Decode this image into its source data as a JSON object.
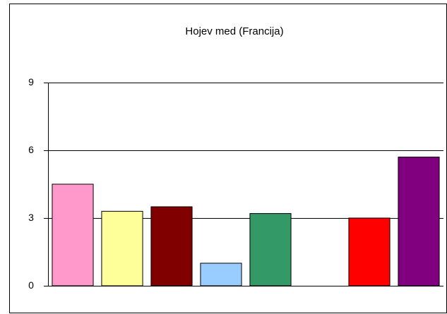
{
  "chart_data": {
    "type": "bar",
    "title": "Hojev med (Francija)",
    "categories": [
      null,
      null,
      null,
      null,
      null,
      null,
      null,
      null
    ],
    "values": [
      4.5,
      3.3,
      3.5,
      1.0,
      3.2,
      null,
      3.0,
      5.7
    ],
    "colors": [
      "#ff99cc",
      "#ffff99",
      "#800000",
      "#99ccff",
      "#339966",
      null,
      "#ff0000",
      "#800080"
    ],
    "ylim": [
      0,
      9
    ],
    "yticks": [
      0,
      3,
      6,
      9
    ],
    "grid": true
  }
}
